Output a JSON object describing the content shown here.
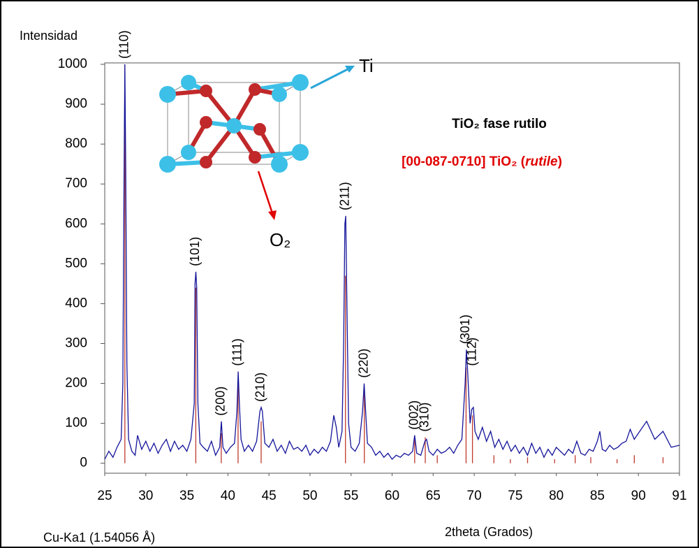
{
  "chart_data": {
    "type": "line",
    "y_label": "Intensidad",
    "x_label": "2theta (Grados)",
    "source_note": "Cu-Ka1 (1.54056 Å)",
    "phase_title": "TiO₂ fase rutilo",
    "reference_title": [
      "[00-087-0710] TiO₂ (",
      "rutile",
      ")"
    ],
    "diagram_labels": [
      "Ti",
      "O₂"
    ],
    "color": "#14149a",
    "x": [
      25,
      25.5,
      26,
      26.5,
      27,
      27.2,
      27.35,
      27.45,
      27.55,
      27.7,
      27.9,
      28.3,
      28.7,
      29,
      29.5,
      30,
      30.5,
      31,
      31.5,
      32,
      32.5,
      33,
      33.5,
      34,
      34.5,
      35,
      35.5,
      35.9,
      36.0,
      36.1,
      36.2,
      36.35,
      36.6,
      37,
      37.5,
      38,
      38.5,
      39,
      39.2,
      39.4,
      39.8,
      40.3,
      40.8,
      41.1,
      41.25,
      41.4,
      41.6,
      42,
      42.5,
      43,
      43.5,
      43.9,
      44.05,
      44.2,
      44.5,
      45,
      45.5,
      46,
      46.5,
      47,
      47.5,
      48,
      48.5,
      49,
      49.5,
      50,
      50.5,
      51,
      51.5,
      52,
      52.5,
      52.9,
      53.2,
      53.5,
      53.9,
      54.1,
      54.25,
      54.35,
      54.5,
      54.7,
      55,
      55.5,
      56,
      56.4,
      56.6,
      56.8,
      57,
      57.5,
      58,
      58.5,
      59,
      59.5,
      60,
      60.5,
      61,
      61.5,
      62,
      62.5,
      62.75,
      63,
      63.5,
      64,
      64.2,
      64.5,
      65,
      65.5,
      66,
      66.5,
      67,
      67.5,
      68,
      68.5,
      68.9,
      69.05,
      69.2,
      69.5,
      69.7,
      69.9,
      70.1,
      70.5,
      71,
      71.5,
      72,
      72.5,
      73,
      73.5,
      74,
      74.5,
      75,
      75.5,
      76,
      76.5,
      77,
      77.5,
      78,
      78.5,
      79,
      79.5,
      80,
      80.5,
      81,
      81.5,
      82,
      82.5,
      83,
      83.5,
      84,
      84.5,
      85,
      85.3,
      85.6,
      86,
      86.5,
      87,
      87.5,
      88,
      88.5,
      89,
      89.5,
      90,
      90.2,
      90.4,
      90.6,
      90.8,
      91
    ],
    "values": [
      10,
      30,
      15,
      40,
      60,
      200,
      700,
      1000,
      750,
      250,
      60,
      30,
      20,
      70,
      35,
      55,
      30,
      50,
      25,
      45,
      60,
      30,
      55,
      35,
      45,
      30,
      60,
      150,
      450,
      480,
      440,
      150,
      50,
      40,
      30,
      55,
      20,
      40,
      105,
      40,
      25,
      40,
      50,
      130,
      230,
      150,
      60,
      30,
      45,
      30,
      55,
      130,
      140,
      130,
      50,
      40,
      60,
      30,
      45,
      25,
      55,
      35,
      40,
      30,
      45,
      20,
      35,
      25,
      40,
      30,
      55,
      120,
      90,
      40,
      80,
      300,
      600,
      620,
      400,
      100,
      40,
      30,
      50,
      130,
      200,
      120,
      50,
      40,
      20,
      30,
      15,
      25,
      10,
      20,
      15,
      25,
      20,
      30,
      70,
      25,
      20,
      55,
      60,
      30,
      20,
      35,
      25,
      30,
      40,
      25,
      45,
      60,
      200,
      285,
      230,
      100,
      135,
      140,
      80,
      60,
      90,
      55,
      80,
      40,
      60,
      35,
      55,
      30,
      45,
      25,
      40,
      20,
      50,
      25,
      40,
      15,
      35,
      20,
      40,
      30,
      20,
      35,
      25,
      55,
      25,
      20,
      35,
      30,
      55,
      80,
      35,
      30,
      45,
      35,
      40,
      50,
      55,
      85,
      60,
      75,
      105,
      60,
      80,
      40,
      45
    ],
    "reference": {
      "color": "#c0392b",
      "x": [
        27.45,
        36.09,
        39.19,
        41.24,
        44.05,
        54.32,
        56.62,
        62.75,
        64.04,
        69.01,
        69.79,
        65.5,
        72.4,
        74.4,
        76.5,
        79.8,
        82.3,
        84.2,
        87.4,
        89.5,
        90.6
      ],
      "values": [
        1000,
        440,
        75,
        200,
        105,
        470,
        180,
        70,
        65,
        240,
        120,
        20,
        20,
        10,
        15,
        10,
        20,
        15,
        10,
        20,
        15
      ],
      "labels": [
        "(110)",
        "(101)",
        "(200)",
        "(111)",
        "(210)",
        "(211)",
        "(220)",
        "(002)",
        "(310)",
        "(301)",
        "(112)",
        null,
        null,
        null,
        null,
        null,
        null,
        null,
        null,
        null,
        null
      ]
    },
    "xlim": [
      25,
      91
    ],
    "xticks": [
      25,
      30,
      35,
      40,
      45,
      50,
      55,
      60,
      65,
      70,
      75,
      80,
      85,
      90,
      91
    ],
    "ylim": [
      -25,
      1000
    ],
    "yticks": [
      0,
      100,
      200,
      300,
      400,
      500,
      600,
      700,
      800,
      900,
      1000
    ]
  }
}
